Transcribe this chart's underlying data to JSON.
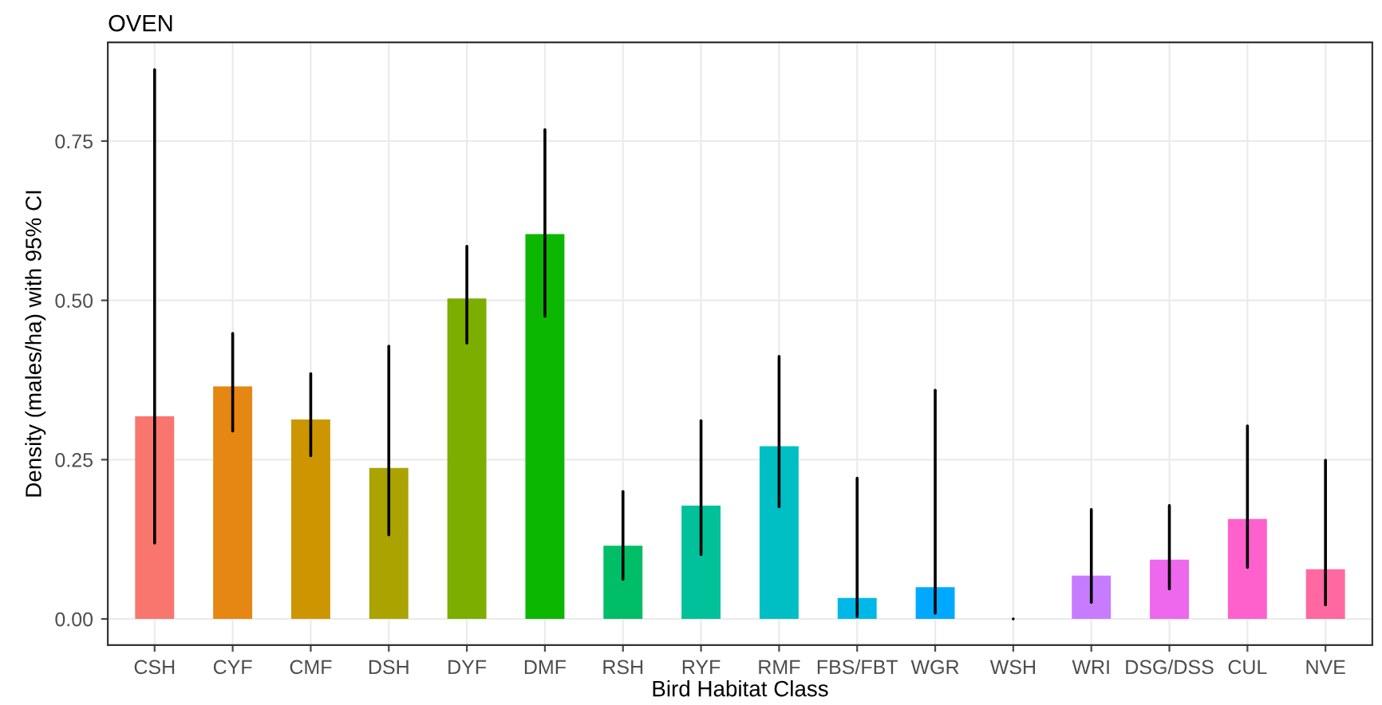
{
  "chart_data": {
    "type": "bar",
    "title": "OVEN",
    "xlabel": "Bird Habitat Class",
    "ylabel": "Density (males/ha) with 95% CI",
    "categories": [
      "CSH",
      "CYF",
      "CMF",
      "DSH",
      "DYF",
      "DMF",
      "RSH",
      "RYF",
      "RMF",
      "FBS/FBT",
      "WGR",
      "WSH",
      "WRI",
      "DSG/DSS",
      "CUL",
      "NVE"
    ],
    "values": [
      0.318,
      0.365,
      0.313,
      0.237,
      0.503,
      0.604,
      0.115,
      0.178,
      0.271,
      0.033,
      0.05,
      0.0,
      0.068,
      0.093,
      0.157,
      0.078
    ],
    "errors": [
      [
        0.119,
        0.862
      ],
      [
        0.295,
        0.448
      ],
      [
        0.256,
        0.385
      ],
      [
        0.132,
        0.428
      ],
      [
        0.433,
        0.585
      ],
      [
        0.475,
        0.768
      ],
      [
        0.062,
        0.2
      ],
      [
        0.101,
        0.311
      ],
      [
        0.176,
        0.412
      ],
      [
        0.004,
        0.221
      ],
      [
        0.009,
        0.359
      ],
      [
        0.0,
        0.0
      ],
      [
        0.026,
        0.172
      ],
      [
        0.047,
        0.178
      ],
      [
        0.081,
        0.303
      ],
      [
        0.022,
        0.249
      ]
    ],
    "colors": [
      "#F8766D",
      "#E68613",
      "#CD9600",
      "#ABA300",
      "#7CAE00",
      "#0CB702",
      "#00BE67",
      "#00C19A",
      "#00BFC4",
      "#00B8E7",
      "#00A9FF",
      "#8494FF",
      "#C77CFF",
      "#ED68ED",
      "#FF61CC",
      "#FF68A1"
    ],
    "ylim": [
      -0.041,
      0.905
    ],
    "yticks": [
      {
        "value": 0,
        "label": "0.00"
      },
      {
        "value": 0.25,
        "label": "0.25"
      },
      {
        "value": 0.5,
        "label": "0.50"
      },
      {
        "value": 0.75,
        "label": "0.75"
      }
    ],
    "grid": true
  }
}
